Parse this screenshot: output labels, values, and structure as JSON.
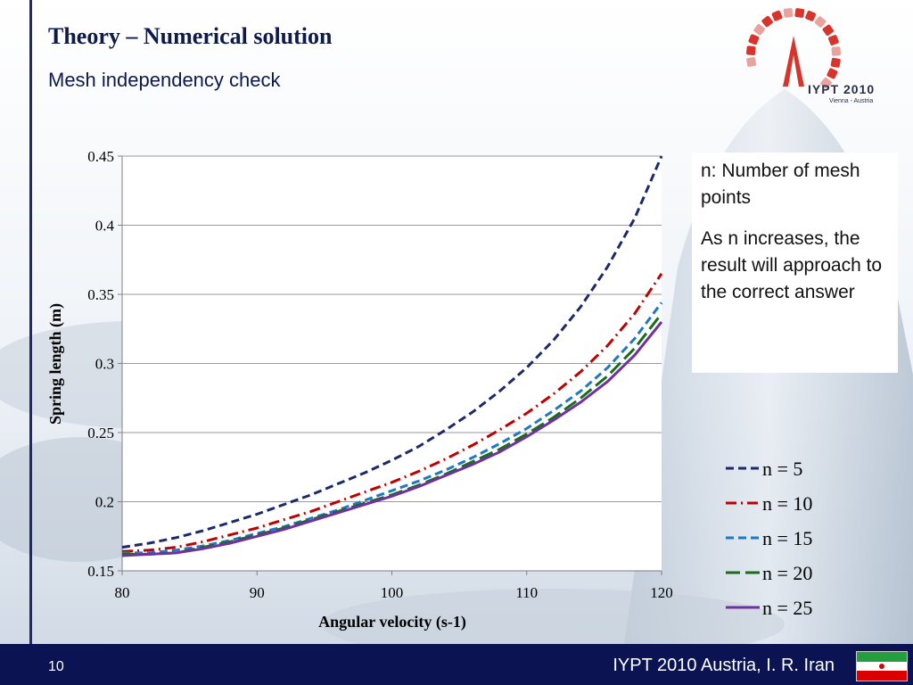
{
  "slide": {
    "title": "Theory – Numerical solution",
    "subtitle": "Mesh independency check",
    "notes": [
      "n: Number of mesh points",
      "As n increases, the result will approach to the correct answer"
    ],
    "page_number": "10",
    "footer_text": "IYPT 2010 Austria, I. R. Iran",
    "logo_text": "IYPT 2010",
    "logo_subtext": "Vienna - Austria"
  },
  "colors": {
    "footer_bg": "#0b1352",
    "accent_bar": "#1f2a6e",
    "title": "#0d1a4a"
  },
  "chart_data": {
    "type": "line",
    "title": "",
    "xlabel": "Angular velocity (s-1)",
    "ylabel": "Spring length (m)",
    "xlim": [
      80,
      120
    ],
    "ylim": [
      0.15,
      0.45
    ],
    "xticks": [
      "80",
      "90",
      "100",
      "110",
      "120"
    ],
    "yticks": [
      "0.15",
      "0.2",
      "0.25",
      "0.3",
      "0.35",
      "0.4",
      "0.45"
    ],
    "grid": "horizontal",
    "legend_position": "right",
    "x": [
      80,
      82,
      84,
      86,
      88,
      90,
      92,
      94,
      96,
      98,
      100,
      102,
      104,
      106,
      108,
      110,
      112,
      114,
      116,
      118,
      120
    ],
    "series": [
      {
        "name": "n = 5",
        "color": "#1b2a6b",
        "dash": "dashed",
        "values": [
          0.167,
          0.17,
          0.174,
          0.179,
          0.185,
          0.191,
          0.198,
          0.205,
          0.213,
          0.221,
          0.23,
          0.24,
          0.252,
          0.265,
          0.28,
          0.297,
          0.317,
          0.341,
          0.37,
          0.405,
          0.45
        ]
      },
      {
        "name": "n = 10",
        "color": "#c00000",
        "dash": "dashdot",
        "values": [
          0.164,
          0.165,
          0.167,
          0.171,
          0.176,
          0.181,
          0.187,
          0.193,
          0.2,
          0.207,
          0.214,
          0.222,
          0.231,
          0.241,
          0.252,
          0.264,
          0.278,
          0.294,
          0.313,
          0.336,
          0.365
        ]
      },
      {
        "name": "n = 15",
        "color": "#1f78c1",
        "dash": "dashed",
        "values": [
          0.163,
          0.163,
          0.165,
          0.168,
          0.172,
          0.177,
          0.182,
          0.188,
          0.194,
          0.201,
          0.208,
          0.215,
          0.223,
          0.232,
          0.242,
          0.253,
          0.266,
          0.28,
          0.297,
          0.318,
          0.344
        ]
      },
      {
        "name": "n = 20",
        "color": "#1a6b1a",
        "dash": "longdash",
        "values": [
          0.162,
          0.162,
          0.163,
          0.167,
          0.171,
          0.176,
          0.181,
          0.187,
          0.193,
          0.199,
          0.205,
          0.212,
          0.22,
          0.229,
          0.238,
          0.249,
          0.261,
          0.275,
          0.291,
          0.311,
          0.336
        ]
      },
      {
        "name": "n = 25",
        "color": "#7030a0",
        "dash": "solid",
        "values": [
          0.161,
          0.162,
          0.163,
          0.166,
          0.17,
          0.175,
          0.18,
          0.186,
          0.192,
          0.198,
          0.204,
          0.211,
          0.219,
          0.227,
          0.236,
          0.247,
          0.259,
          0.272,
          0.287,
          0.306,
          0.33
        ]
      }
    ]
  }
}
